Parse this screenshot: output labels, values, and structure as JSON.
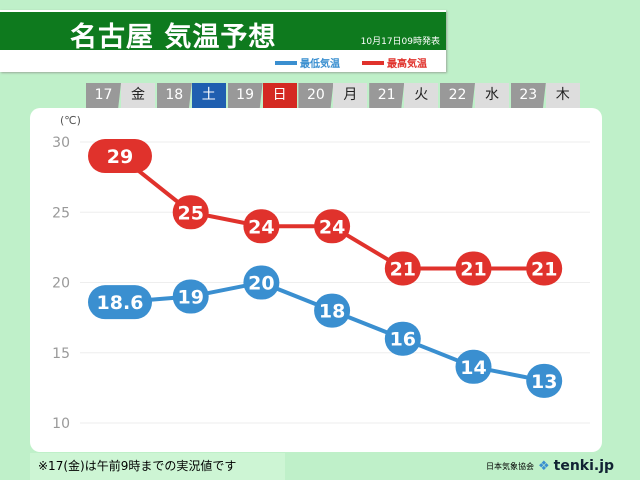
{
  "header": {
    "title": "名古屋 気温予想",
    "issued": "10月17日09時発表"
  },
  "days": [
    {
      "n": "17",
      "d": "金"
    },
    {
      "n": "18",
      "d": "土",
      "style": "sat"
    },
    {
      "n": "19",
      "d": "日",
      "style": "sun"
    },
    {
      "n": "20",
      "d": "月"
    },
    {
      "n": "21",
      "d": "火"
    },
    {
      "n": "22",
      "d": "水"
    },
    {
      "n": "23",
      "d": "木"
    }
  ],
  "footer": {
    "note": "※17(金)は午前9時までの実況値です",
    "org": "日本気象協会",
    "brand": "tenki.jp"
  },
  "colors": {
    "low": "#3a8fd0",
    "high": "#e0322c",
    "sat": "#1f5fb0",
    "sun": "#d42a22"
  },
  "chart_data": {
    "type": "line",
    "title": "名古屋 気温予想",
    "ylabel": "(℃)",
    "ylim": [
      10,
      30
    ],
    "yticks": [
      10,
      15,
      20,
      25,
      30
    ],
    "categories": [
      "17",
      "18",
      "19",
      "20",
      "21",
      "22",
      "23"
    ],
    "series": [
      {
        "name": "最低気温",
        "values": [
          18.6,
          19,
          20,
          18,
          16,
          14,
          13
        ],
        "labels": [
          "18.6",
          "19",
          "20",
          "18",
          "16",
          "14",
          "13"
        ]
      },
      {
        "name": "最高気温",
        "values": [
          29,
          25,
          24,
          24,
          21,
          21,
          21
        ],
        "labels": [
          "29",
          "25",
          "24",
          "24",
          "21",
          "21",
          "21"
        ]
      }
    ]
  }
}
